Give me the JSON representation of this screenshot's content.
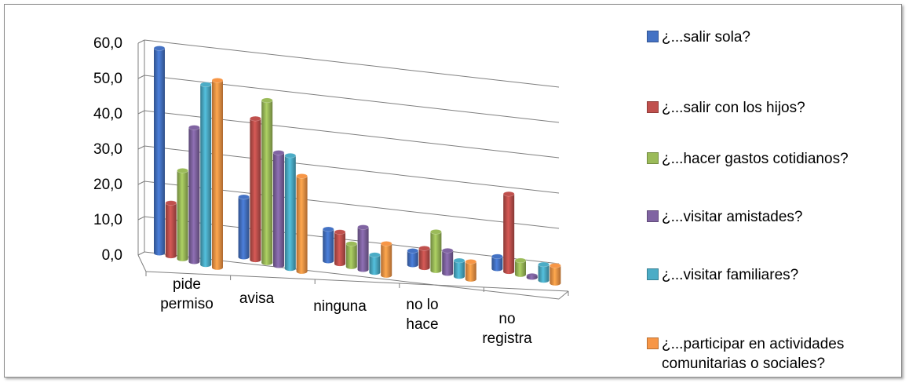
{
  "chart_data": {
    "type": "bar",
    "title": "",
    "xlabel": "",
    "ylabel": "",
    "ylim": [
      0,
      60
    ],
    "y_ticks": [
      "0,0",
      "10,0",
      "20,0",
      "30,0",
      "40,0",
      "50,0",
      "60,0"
    ],
    "grid": true,
    "legend_position": "right",
    "categories": [
      "pide permiso",
      "avisa",
      "ninguna",
      "no lo hace",
      "no registra"
    ],
    "category_labels": [
      "pide\npermiso",
      "avisa",
      "ninguna",
      "no lo\nhace",
      "no\nregistra"
    ],
    "series": [
      {
        "name": "¿...salir sola?",
        "color": "#4472C4",
        "values": [
          58.0,
          17.0,
          9.0,
          4.0,
          3.5
        ]
      },
      {
        "name": "¿...salir con los hijos?",
        "color": "#C0504D",
        "values": [
          15.0,
          40.0,
          9.0,
          5.5,
          22.0
        ]
      },
      {
        "name": "¿...hacer gastos cotidianos?",
        "color": "#9BBB59",
        "values": [
          25.0,
          46.0,
          6.5,
          11.0,
          4.0
        ]
      },
      {
        "name": "¿...visitar amistades?",
        "color": "#8064A2",
        "values": [
          38.0,
          32.0,
          12.0,
          6.5,
          0.5
        ]
      },
      {
        "name": "¿...visitar familiares?",
        "color": "#4BACC6",
        "values": [
          51.0,
          32.0,
          5.0,
          4.5,
          4.5
        ]
      },
      {
        "name": "¿...participar en actividades comunitarias o sociales?",
        "color": "#F79646",
        "values": [
          53.0,
          27.0,
          9.0,
          5.0,
          5.0
        ]
      }
    ]
  },
  "legend": {
    "items": [
      {
        "label": "¿...salir sola?",
        "color": "#4472C4"
      },
      {
        "label": "¿...salir con los hijos?",
        "color": "#C0504D"
      },
      {
        "label": "¿...hacer gastos cotidianos?",
        "color": "#9BBB59"
      },
      {
        "label": "¿...visitar amistades?",
        "color": "#8064A2"
      },
      {
        "label": "¿...visitar familiares?",
        "color": "#4BACC6"
      },
      {
        "label": "¿...participar en actividades\ncomunitarias o sociales?",
        "color": "#F79646"
      }
    ]
  }
}
